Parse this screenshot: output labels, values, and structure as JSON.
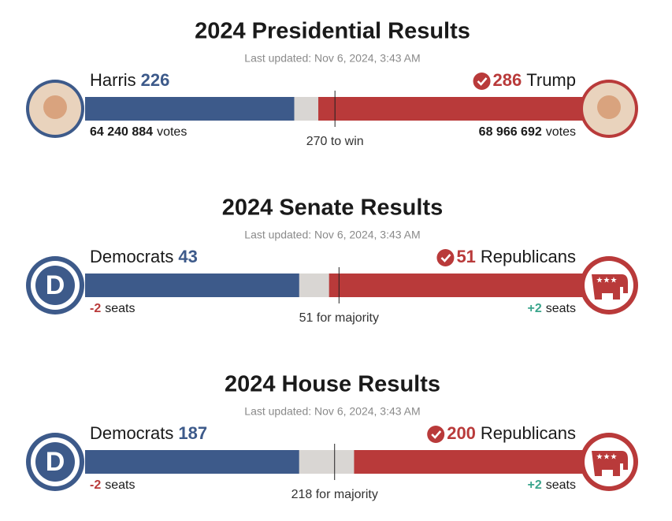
{
  "sections": [
    {
      "title": "2024 Presidential Results",
      "updated": "Last updated: Nov 6, 2024, 3:43 AM",
      "xlim": [
        0,
        538
      ],
      "threshold": {
        "value": 270,
        "label": "270 to win"
      },
      "neutral_color": "#d9d6d3",
      "left": {
        "name": "Harris",
        "value": 226,
        "detail": "64 240 884",
        "unit": "votes",
        "color": "#3d5a8a",
        "detail_color": "#1a1a1a",
        "winner": false,
        "icon": "photo"
      },
      "right": {
        "name": "Trump",
        "value": 286,
        "detail": "68 966 692",
        "unit": "votes",
        "color": "#b93a3a",
        "detail_color": "#1a1a1a",
        "winner": true,
        "icon": "photo"
      }
    },
    {
      "title": "2024 Senate Results",
      "updated": "Last updated: Nov 6, 2024, 3:43 AM",
      "xlim": [
        0,
        100
      ],
      "threshold": {
        "value": 51,
        "label": "51 for majority"
      },
      "neutral_color": "#d9d6d3",
      "left": {
        "name": "Democrats",
        "value": 43,
        "detail": "-2",
        "unit": "seats",
        "color": "#3d5a8a",
        "detail_color": "#b93a3a",
        "winner": false,
        "icon": "dem"
      },
      "right": {
        "name": "Republicans",
        "value": 51,
        "detail": "+2",
        "unit": "seats",
        "color": "#b93a3a",
        "detail_color": "#3aa58c",
        "winner": true,
        "icon": "gop"
      }
    },
    {
      "title": "2024 House Results",
      "updated": "Last updated: Nov 6, 2024, 3:43 AM",
      "xlim": [
        0,
        435
      ],
      "threshold": {
        "value": 218,
        "label": "218 for majority"
      },
      "neutral_color": "#d9d6d3",
      "left": {
        "name": "Democrats",
        "value": 187,
        "detail": "-2",
        "unit": "seats",
        "color": "#3d5a8a",
        "detail_color": "#b93a3a",
        "winner": false,
        "icon": "dem"
      },
      "right": {
        "name": "Republicans",
        "value": 200,
        "detail": "+2",
        "unit": "seats",
        "color": "#b93a3a",
        "detail_color": "#3aa58c",
        "winner": true,
        "icon": "gop"
      }
    }
  ]
}
